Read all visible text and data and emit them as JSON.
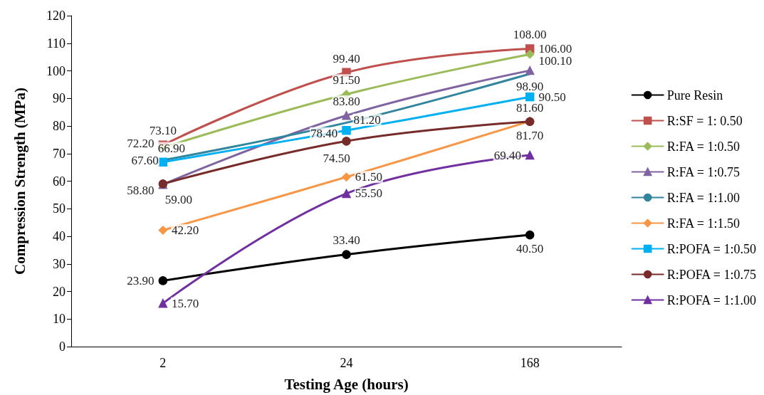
{
  "chart_data": {
    "type": "line",
    "xlabel": "Testing Age (hours)",
    "ylabel": "Compression Strength (MPa)",
    "categories": [
      "2",
      "24",
      "168"
    ],
    "ylim": [
      0,
      120
    ],
    "yticks": [
      0,
      10,
      20,
      30,
      40,
      50,
      60,
      70,
      80,
      90,
      100,
      110,
      120
    ],
    "grid": false,
    "legend": "right",
    "line_style": "solid",
    "series": [
      {
        "name": "Pure Resin",
        "color": "#000000",
        "marker": "circle",
        "values": [
          23.9,
          33.4,
          40.5
        ],
        "value_labels": [
          "23.90",
          "33.40",
          "40.50"
        ]
      },
      {
        "name": "R:SF = 1: 0.50",
        "color": "#c0504d",
        "marker": "square",
        "values": [
          73.1,
          99.4,
          108.0
        ],
        "value_labels": [
          "73.10",
          "99.40",
          "108.00"
        ]
      },
      {
        "name": "R:FA = 1:0.50",
        "color": "#9bbb59",
        "marker": "diamond",
        "values": [
          72.2,
          91.5,
          106.0
        ],
        "value_labels": [
          "72.20",
          "91.50",
          "106.00"
        ]
      },
      {
        "name": "R:FA = 1:0.75",
        "color": "#8064a2",
        "marker": "triangle",
        "values": [
          58.8,
          83.8,
          100.1
        ],
        "value_labels": [
          "58.80",
          "83.80",
          "100.10"
        ]
      },
      {
        "name": "R:FA = 1:1.00",
        "color": "#31859c",
        "marker": "none",
        "values": [
          67.6,
          81.2,
          98.9
        ],
        "value_labels": [
          "67.60",
          "81.20",
          "98.90"
        ]
      },
      {
        "name": "R:FA = 1:1.50",
        "color": "#f79646",
        "marker": "diamond",
        "values": [
          42.2,
          61.5,
          81.7
        ],
        "value_labels": [
          "42.20",
          "61.50",
          "81.70"
        ]
      },
      {
        "name": "R:POFA = 1:0.50",
        "color": "#00b0f0",
        "marker": "square",
        "values": [
          66.9,
          78.4,
          90.5
        ],
        "value_labels": [
          "66.90",
          "78.40",
          "90.50"
        ]
      },
      {
        "name": "R:POFA = 1:0.75",
        "color": "#772c2a",
        "marker": "circle",
        "values": [
          59.0,
          74.5,
          81.6
        ],
        "value_labels": [
          "59.00",
          "74.50",
          "81.60"
        ]
      },
      {
        "name": "R:POFA = 1:1.00",
        "color": "#7030a0",
        "marker": "triangle",
        "values": [
          15.7,
          55.5,
          69.4
        ],
        "value_labels": [
          "15.70",
          "55.50",
          "69.40"
        ]
      }
    ]
  }
}
